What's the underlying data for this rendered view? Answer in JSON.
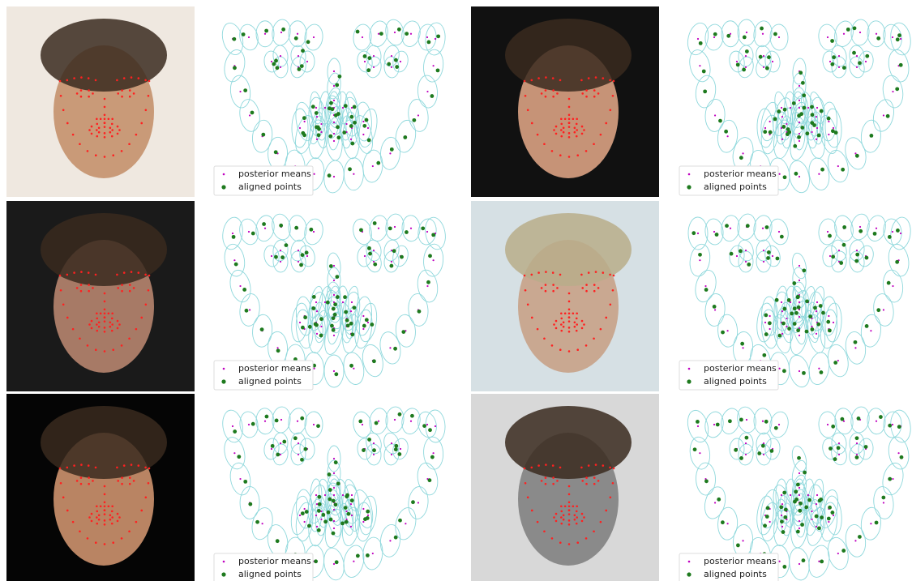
{
  "panels": [
    {
      "legend": [
        "posterior means",
        "aligned points"
      ]
    },
    {
      "legend": [
        "posterior means",
        "aligned points"
      ]
    },
    {
      "legend": [
        "posterior means",
        "aligned points"
      ]
    },
    {
      "legend": [
        "posterior means",
        "aligned points"
      ]
    },
    {
      "legend": [
        "posterior means",
        "aligned points"
      ]
    },
    {
      "legend": [
        "posterior means",
        "aligned points"
      ]
    }
  ]
}
